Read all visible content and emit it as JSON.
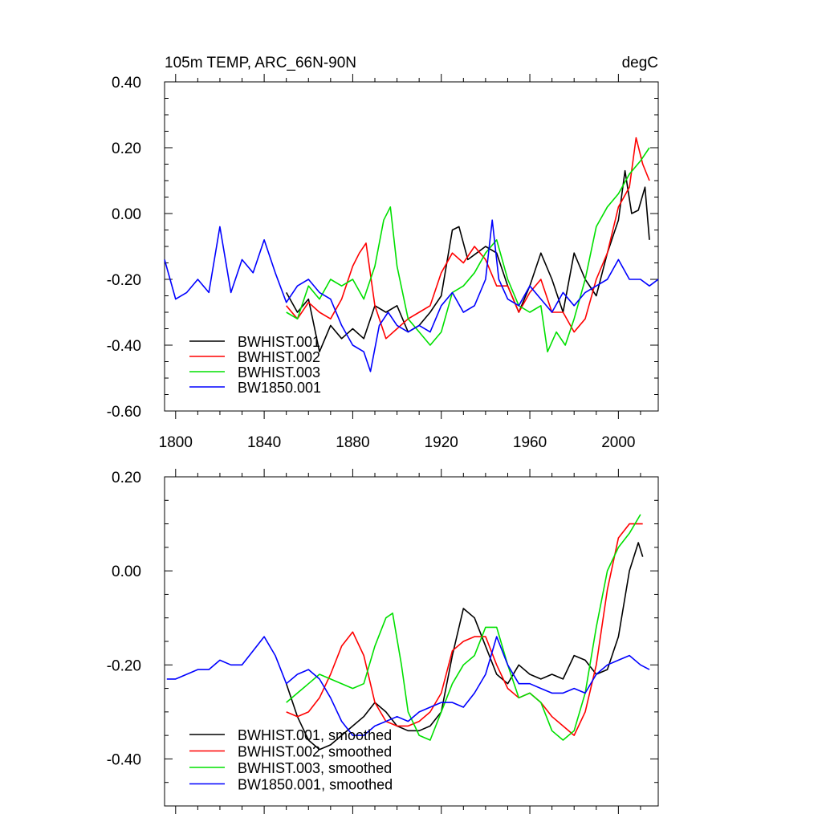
{
  "chart_data": [
    {
      "type": "line",
      "title_left": "105m TEMP, ARC_66N-90N",
      "title_right": "degC",
      "xlim": [
        1795,
        2018
      ],
      "ylim": [
        -0.6,
        0.4
      ],
      "x_ticks": [
        1800,
        1840,
        1880,
        1920,
        1960,
        2000
      ],
      "x_tick_labels": [
        "1800",
        "1840",
        "1880",
        "1920",
        "1960",
        "2000"
      ],
      "y_ticks": [
        -0.6,
        -0.4,
        -0.2,
        0.0,
        0.2,
        0.4
      ],
      "y_tick_labels": [
        "-0.60",
        "-0.40",
        "-0.20",
        "0.00",
        "0.20",
        "0.40"
      ],
      "legend_position": "bottom-left",
      "series": [
        {
          "name": "BWHIST.001",
          "color": "#000000",
          "x": [
            1850,
            1855,
            1860,
            1865,
            1870,
            1875,
            1880,
            1885,
            1890,
            1895,
            1900,
            1905,
            1910,
            1915,
            1920,
            1925,
            1928,
            1932,
            1936,
            1940,
            1945,
            1950,
            1955,
            1960,
            1965,
            1970,
            1975,
            1980,
            1985,
            1990,
            1995,
            2000,
            2003,
            2006,
            2009,
            2012,
            2014
          ],
          "y": [
            -0.24,
            -0.3,
            -0.26,
            -0.42,
            -0.34,
            -0.38,
            -0.35,
            -0.38,
            -0.28,
            -0.3,
            -0.28,
            -0.36,
            -0.34,
            -0.3,
            -0.25,
            -0.05,
            -0.04,
            -0.14,
            -0.12,
            -0.1,
            -0.12,
            -0.22,
            -0.3,
            -0.22,
            -0.12,
            -0.2,
            -0.3,
            -0.12,
            -0.2,
            -0.25,
            -0.12,
            -0.02,
            0.13,
            0.0,
            0.01,
            0.08,
            -0.08
          ]
        },
        {
          "name": "BWHIST.002",
          "color": "#ff0000",
          "x": [
            1850,
            1855,
            1860,
            1865,
            1870,
            1875,
            1880,
            1883,
            1886,
            1890,
            1895,
            1900,
            1905,
            1910,
            1915,
            1920,
            1925,
            1930,
            1935,
            1940,
            1945,
            1950,
            1955,
            1960,
            1965,
            1970,
            1975,
            1980,
            1985,
            1990,
            1995,
            2000,
            2005,
            2008,
            2011,
            2014
          ],
          "y": [
            -0.28,
            -0.32,
            -0.27,
            -0.3,
            -0.32,
            -0.26,
            -0.16,
            -0.12,
            -0.09,
            -0.28,
            -0.38,
            -0.35,
            -0.32,
            -0.3,
            -0.28,
            -0.18,
            -0.12,
            -0.15,
            -0.1,
            -0.14,
            -0.22,
            -0.22,
            -0.3,
            -0.24,
            -0.2,
            -0.3,
            -0.3,
            -0.36,
            -0.32,
            -0.2,
            -0.12,
            0.02,
            0.08,
            0.23,
            0.15,
            0.1
          ]
        },
        {
          "name": "BWHIST.003",
          "color": "#00e000",
          "x": [
            1850,
            1855,
            1860,
            1865,
            1870,
            1875,
            1880,
            1885,
            1890,
            1894,
            1897,
            1900,
            1905,
            1910,
            1915,
            1920,
            1925,
            1930,
            1935,
            1940,
            1945,
            1950,
            1955,
            1960,
            1965,
            1968,
            1972,
            1976,
            1980,
            1985,
            1990,
            1995,
            2000,
            2005,
            2010,
            2014
          ],
          "y": [
            -0.3,
            -0.32,
            -0.22,
            -0.26,
            -0.2,
            -0.22,
            -0.2,
            -0.26,
            -0.16,
            -0.02,
            0.02,
            -0.16,
            -0.32,
            -0.36,
            -0.4,
            -0.36,
            -0.24,
            -0.22,
            -0.18,
            -0.12,
            -0.08,
            -0.2,
            -0.28,
            -0.3,
            -0.28,
            -0.42,
            -0.36,
            -0.4,
            -0.32,
            -0.2,
            -0.04,
            0.02,
            0.06,
            0.12,
            0.16,
            0.2
          ]
        },
        {
          "name": "BW1850.001",
          "color": "#0000ff",
          "x": [
            1795,
            1800,
            1805,
            1810,
            1815,
            1820,
            1825,
            1830,
            1835,
            1840,
            1845,
            1850,
            1855,
            1860,
            1865,
            1870,
            1875,
            1880,
            1885,
            1888,
            1892,
            1896,
            1900,
            1905,
            1910,
            1915,
            1920,
            1925,
            1930,
            1935,
            1940,
            1943,
            1946,
            1950,
            1955,
            1960,
            1965,
            1970,
            1975,
            1980,
            1985,
            1990,
            1995,
            2000,
            2005,
            2010,
            2014,
            2018
          ],
          "y": [
            -0.14,
            -0.26,
            -0.24,
            -0.2,
            -0.24,
            -0.04,
            -0.24,
            -0.14,
            -0.18,
            -0.08,
            -0.18,
            -0.27,
            -0.22,
            -0.2,
            -0.24,
            -0.26,
            -0.34,
            -0.4,
            -0.42,
            -0.48,
            -0.34,
            -0.3,
            -0.34,
            -0.36,
            -0.34,
            -0.36,
            -0.28,
            -0.24,
            -0.3,
            -0.28,
            -0.2,
            -0.02,
            -0.2,
            -0.26,
            -0.28,
            -0.22,
            -0.26,
            -0.3,
            -0.24,
            -0.28,
            -0.24,
            -0.22,
            -0.2,
            -0.14,
            -0.2,
            -0.2,
            -0.22,
            -0.2
          ]
        }
      ]
    },
    {
      "type": "line",
      "xlim": [
        1795,
        2018
      ],
      "ylim": [
        -0.5,
        0.2
      ],
      "x_ticks": [
        1800,
        1840,
        1880,
        1920,
        1960,
        2000
      ],
      "y_ticks": [
        -0.4,
        -0.2,
        0.0,
        0.2
      ],
      "y_tick_labels": [
        "-0.40",
        "-0.20",
        "0.00",
        "0.20"
      ],
      "legend_position": "bottom-left",
      "series": [
        {
          "name": "BWHIST.001, smoothed",
          "color": "#000000",
          "x": [
            1850,
            1855,
            1860,
            1865,
            1870,
            1875,
            1880,
            1885,
            1890,
            1895,
            1900,
            1905,
            1910,
            1915,
            1920,
            1925,
            1930,
            1935,
            1940,
            1945,
            1950,
            1955,
            1960,
            1965,
            1970,
            1975,
            1980,
            1985,
            1990,
            1995,
            2000,
            2005,
            2009,
            2011
          ],
          "y": [
            -0.24,
            -0.31,
            -0.36,
            -0.38,
            -0.37,
            -0.35,
            -0.33,
            -0.31,
            -0.28,
            -0.3,
            -0.33,
            -0.34,
            -0.34,
            -0.33,
            -0.3,
            -0.18,
            -0.08,
            -0.1,
            -0.16,
            -0.22,
            -0.24,
            -0.2,
            -0.22,
            -0.23,
            -0.22,
            -0.23,
            -0.18,
            -0.19,
            -0.22,
            -0.21,
            -0.14,
            0.0,
            0.06,
            0.03
          ]
        },
        {
          "name": "BWHIST.002, smoothed",
          "color": "#ff0000",
          "x": [
            1850,
            1855,
            1860,
            1865,
            1870,
            1875,
            1880,
            1885,
            1890,
            1895,
            1900,
            1905,
            1910,
            1915,
            1920,
            1925,
            1930,
            1935,
            1940,
            1945,
            1950,
            1955,
            1960,
            1965,
            1970,
            1975,
            1980,
            1985,
            1990,
            1995,
            2000,
            2005,
            2009,
            2011
          ],
          "y": [
            -0.3,
            -0.31,
            -0.3,
            -0.27,
            -0.22,
            -0.16,
            -0.13,
            -0.18,
            -0.28,
            -0.32,
            -0.33,
            -0.33,
            -0.32,
            -0.3,
            -0.26,
            -0.17,
            -0.15,
            -0.14,
            -0.14,
            -0.2,
            -0.25,
            -0.27,
            -0.26,
            -0.28,
            -0.31,
            -0.33,
            -0.35,
            -0.3,
            -0.2,
            -0.04,
            0.07,
            0.1,
            0.1,
            0.1
          ]
        },
        {
          "name": "BWHIST.003, smoothed",
          "color": "#00e000",
          "x": [
            1850,
            1855,
            1860,
            1865,
            1870,
            1875,
            1880,
            1885,
            1890,
            1895,
            1898,
            1902,
            1905,
            1910,
            1915,
            1920,
            1925,
            1930,
            1935,
            1940,
            1945,
            1950,
            1955,
            1960,
            1965,
            1970,
            1975,
            1980,
            1985,
            1990,
            1995,
            2000,
            2005,
            2010
          ],
          "y": [
            -0.28,
            -0.26,
            -0.24,
            -0.22,
            -0.23,
            -0.24,
            -0.25,
            -0.24,
            -0.16,
            -0.1,
            -0.09,
            -0.2,
            -0.3,
            -0.35,
            -0.36,
            -0.3,
            -0.24,
            -0.2,
            -0.18,
            -0.12,
            -0.12,
            -0.2,
            -0.27,
            -0.26,
            -0.28,
            -0.34,
            -0.36,
            -0.34,
            -0.26,
            -0.12,
            0.0,
            0.05,
            0.08,
            0.12
          ]
        },
        {
          "name": "BW1850.001, smoothed",
          "color": "#0000ff",
          "x": [
            1796,
            1800,
            1805,
            1810,
            1815,
            1820,
            1825,
            1830,
            1835,
            1840,
            1845,
            1850,
            1855,
            1860,
            1865,
            1870,
            1875,
            1880,
            1885,
            1890,
            1895,
            1900,
            1905,
            1910,
            1915,
            1920,
            1925,
            1930,
            1935,
            1940,
            1945,
            1950,
            1955,
            1960,
            1965,
            1970,
            1975,
            1980,
            1985,
            1990,
            1995,
            2000,
            2005,
            2010,
            2014
          ],
          "y": [
            -0.23,
            -0.23,
            -0.22,
            -0.21,
            -0.21,
            -0.19,
            -0.2,
            -0.2,
            -0.17,
            -0.14,
            -0.18,
            -0.24,
            -0.22,
            -0.21,
            -0.23,
            -0.27,
            -0.32,
            -0.35,
            -0.35,
            -0.33,
            -0.32,
            -0.31,
            -0.32,
            -0.3,
            -0.29,
            -0.28,
            -0.28,
            -0.29,
            -0.26,
            -0.22,
            -0.14,
            -0.2,
            -0.24,
            -0.24,
            -0.25,
            -0.26,
            -0.26,
            -0.25,
            -0.26,
            -0.22,
            -0.2,
            -0.19,
            -0.18,
            -0.2,
            -0.21
          ]
        }
      ]
    }
  ]
}
